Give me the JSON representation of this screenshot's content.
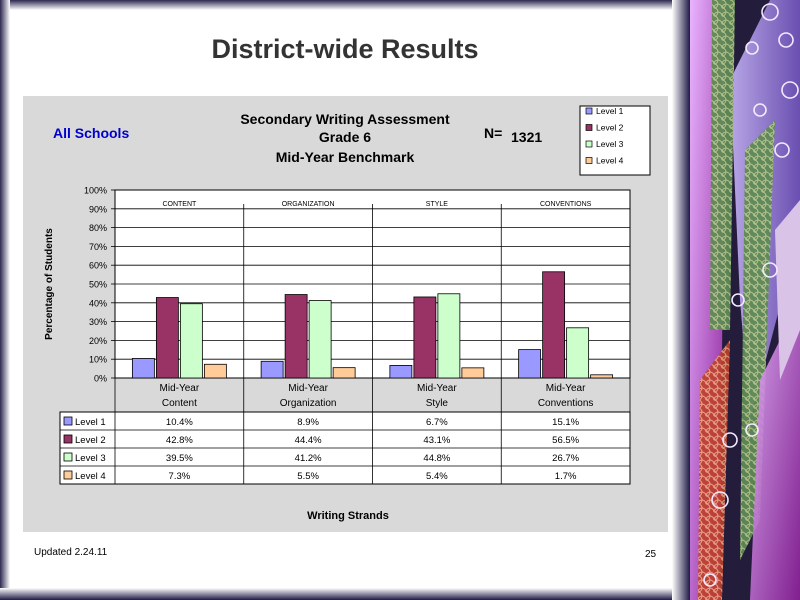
{
  "slide": {
    "title": "District-wide Results",
    "footer": "Updated  2.24.11",
    "page_number": "25"
  },
  "colors": {
    "level1": "#9999ff",
    "level2": "#993366",
    "level3": "#ccffcc",
    "level4": "#ffcc99",
    "chart_bg": "#d9d9d9",
    "plot_bg": "#ffffff",
    "schools_label": "#0000cc"
  },
  "chart_data": {
    "type": "bar",
    "title_lines": [
      "Secondary Writing Assessment",
      "Grade 6",
      "Mid-Year Benchmark"
    ],
    "subtitle_left": "All Schools",
    "n_label": "N=",
    "n_value": "1321",
    "ylabel": "Percentage of Students",
    "xlabel": "Writing Strands",
    "ylim": [
      0,
      100
    ],
    "yticks": [
      "0%",
      "10%",
      "20%",
      "30%",
      "40%",
      "50%",
      "60%",
      "70%",
      "80%",
      "90%",
      "100%"
    ],
    "category_headers": [
      "CONTENT",
      "ORGANIZATION",
      "STYLE",
      "CONVENTIONS"
    ],
    "categories": [
      [
        "Mid-Year",
        "Content"
      ],
      [
        "Mid-Year",
        "Organization"
      ],
      [
        "Mid-Year",
        "Style"
      ],
      [
        "Mid-Year",
        "Conventions"
      ]
    ],
    "series": [
      {
        "name": "Level 1",
        "values": [
          10.4,
          8.9,
          6.7,
          15.1
        ],
        "labels": [
          "10.4%",
          "8.9%",
          "6.7%",
          "15.1%"
        ]
      },
      {
        "name": "Level 2",
        "values": [
          42.8,
          44.4,
          43.1,
          56.5
        ],
        "labels": [
          "42.8%",
          "44.4%",
          "43.1%",
          "56.5%"
        ]
      },
      {
        "name": "Level 3",
        "values": [
          39.5,
          41.2,
          44.8,
          26.7
        ],
        "labels": [
          "39.5%",
          "41.2%",
          "44.8%",
          "26.7%"
        ]
      },
      {
        "name": "Level 4",
        "values": [
          7.3,
          5.5,
          5.4,
          1.7
        ],
        "labels": [
          "7.3%",
          "5.5%",
          "5.4%",
          "1.7%"
        ]
      }
    ],
    "legend_position": "top-right",
    "grid": true,
    "data_table": true
  }
}
